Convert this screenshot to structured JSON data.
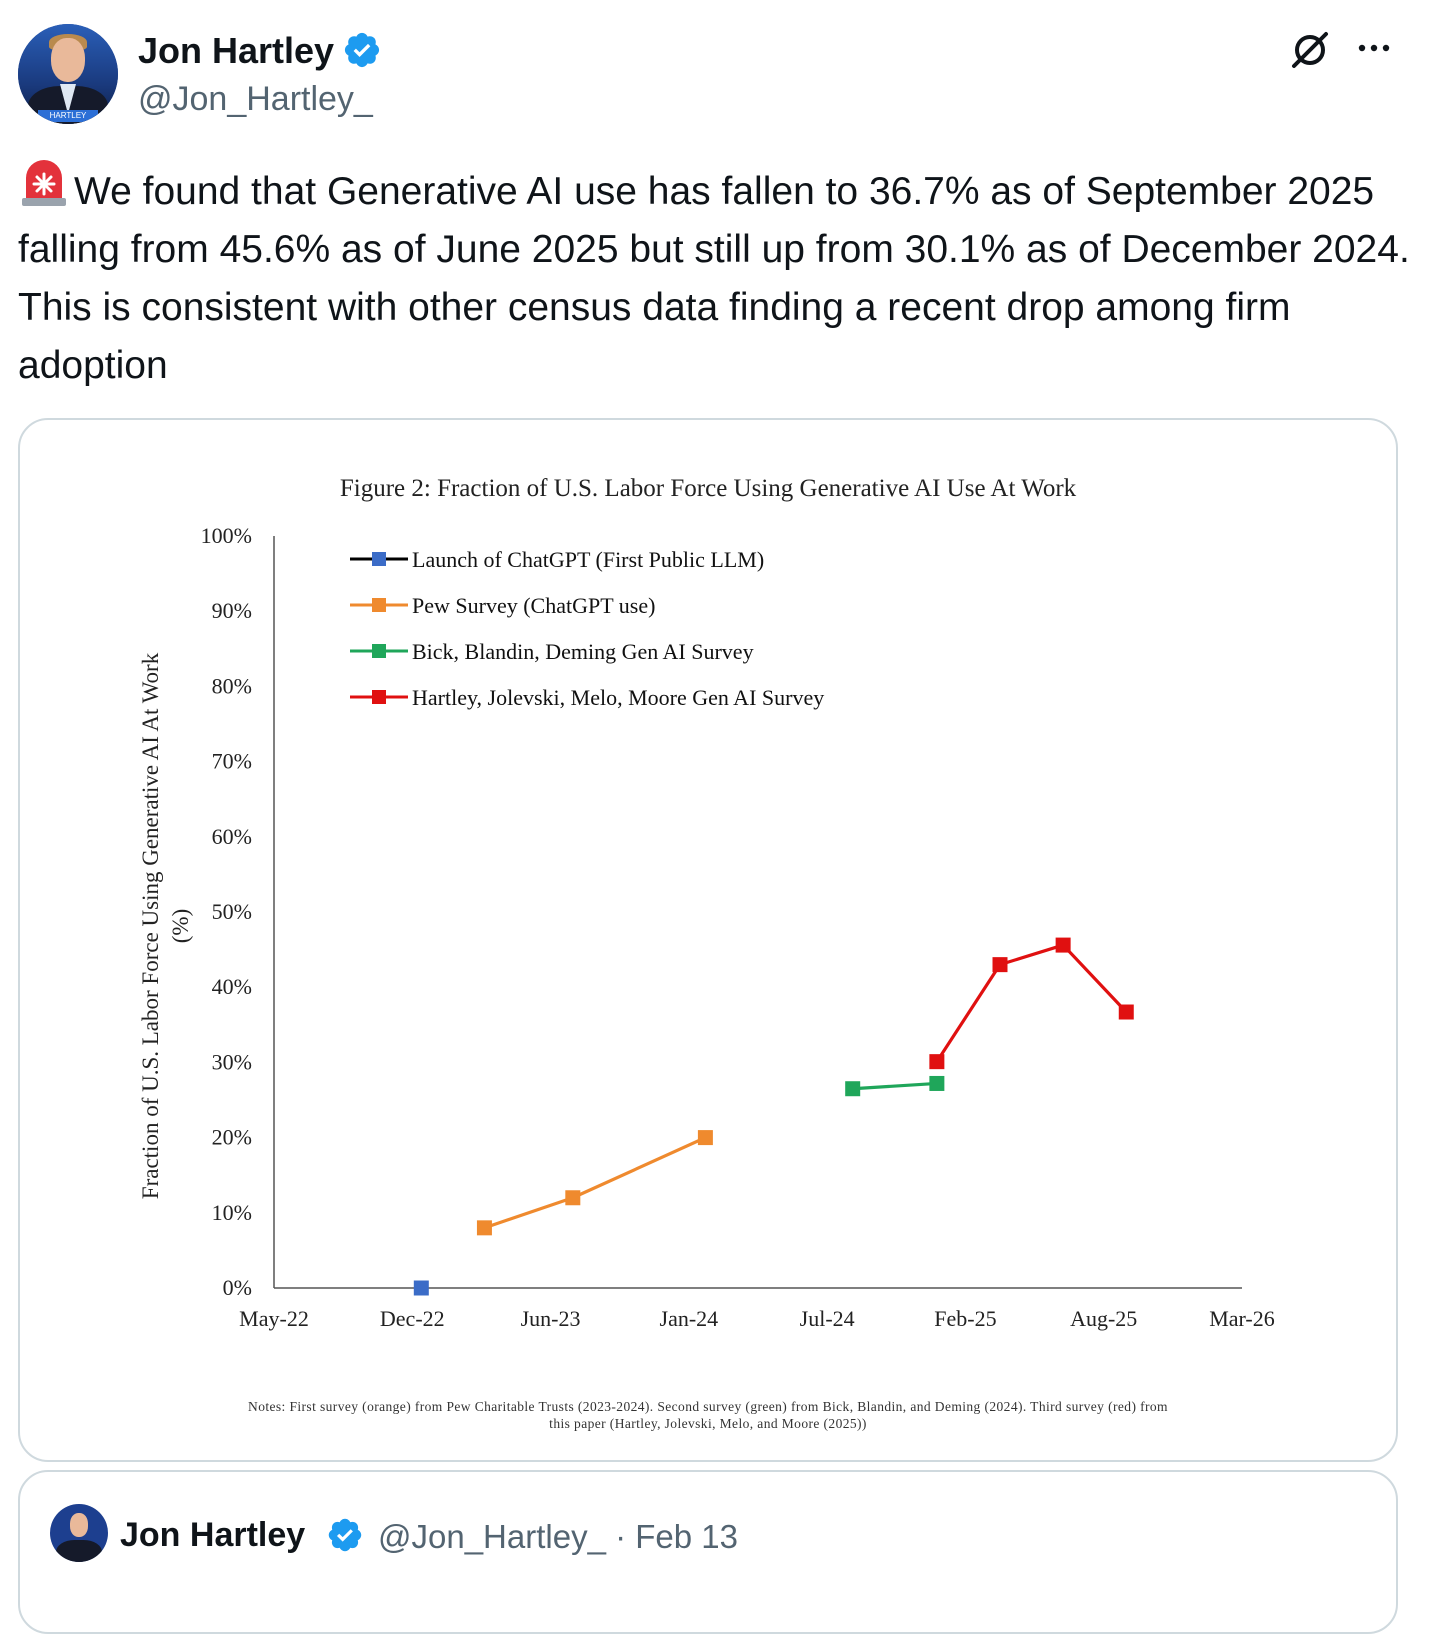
{
  "author": {
    "name": "Jon Hartley",
    "handle": "@Jon_Hartley_",
    "avatar_tag": "HARTLEY"
  },
  "tweet": {
    "text": "We found that Generative AI use has fallen to 36.7% as of September 2025 falling from 45.6% as of June 2025 but still up from 30.1% as of December 2024. This is consistent with other census data finding a recent drop among firm adoption",
    "leading_icon": "siren-emoji"
  },
  "icons": {
    "verified": "verified-badge-icon",
    "grok": "grok-icon",
    "more": "more-icon"
  },
  "colors": {
    "verified_blue": "#1d9bf0",
    "handle_gray": "#536471",
    "border": "#cfd9de"
  },
  "chart_data": {
    "type": "line",
    "title": "Figure 2: Fraction of U.S. Labor Force Using Generative AI Use At Work",
    "ylabel_line1": "Fraction of U.S. Labor Force Using Generative AI At Work",
    "ylabel_line2": "(%)",
    "xlabel": "",
    "ylim": [
      0,
      100
    ],
    "yticks": [
      "0%",
      "10%",
      "20%",
      "30%",
      "40%",
      "50%",
      "60%",
      "70%",
      "80%",
      "90%",
      "100%"
    ],
    "xticks": [
      "May-22",
      "Dec-22",
      "Jun-23",
      "Jan-24",
      "Jul-24",
      "Feb-25",
      "Aug-25",
      "Mar-26"
    ],
    "x_axis_unit": "months since May-22",
    "xlim": [
      0,
      46
    ],
    "series": [
      {
        "name": "Launch of ChatGPT (First Public LLM)",
        "color": "#3b6cc7",
        "line_color": "#000000",
        "x": [
          7
        ],
        "y": [
          0
        ]
      },
      {
        "name": "Pew Survey (ChatGPT use)",
        "color": "#ef8a2e",
        "line_color": "#ef8a2e",
        "x": [
          10,
          14.2,
          20.5
        ],
        "y": [
          8,
          12,
          20
        ]
      },
      {
        "name": "Bick, Blandin, Deming Gen AI Survey",
        "color": "#1fa65a",
        "line_color": "#1fa65a",
        "x": [
          27.5,
          31.5
        ],
        "y": [
          26.5,
          27.2
        ]
      },
      {
        "name": "Hartley, Jolevski, Melo, Moore Gen AI Survey",
        "color": "#e01010",
        "line_color": "#e01010",
        "x": [
          31.5,
          34.5,
          37.5,
          40.5
        ],
        "y": [
          30.1,
          43,
          45.6,
          36.7
        ]
      }
    ],
    "notes_line1": "Notes: First survey (orange) from Pew Charitable Trusts (2023-2024). Second survey (green) from Bick, Blandin, and Deming (2024). Third survey (red) from",
    "notes_line2": "this paper (Hartley, Jolevski, Melo, and Moore (2025))"
  },
  "quoted": {
    "name": "Jon Hartley",
    "handle_date": "@Jon_Hartley_ · Feb 13"
  }
}
